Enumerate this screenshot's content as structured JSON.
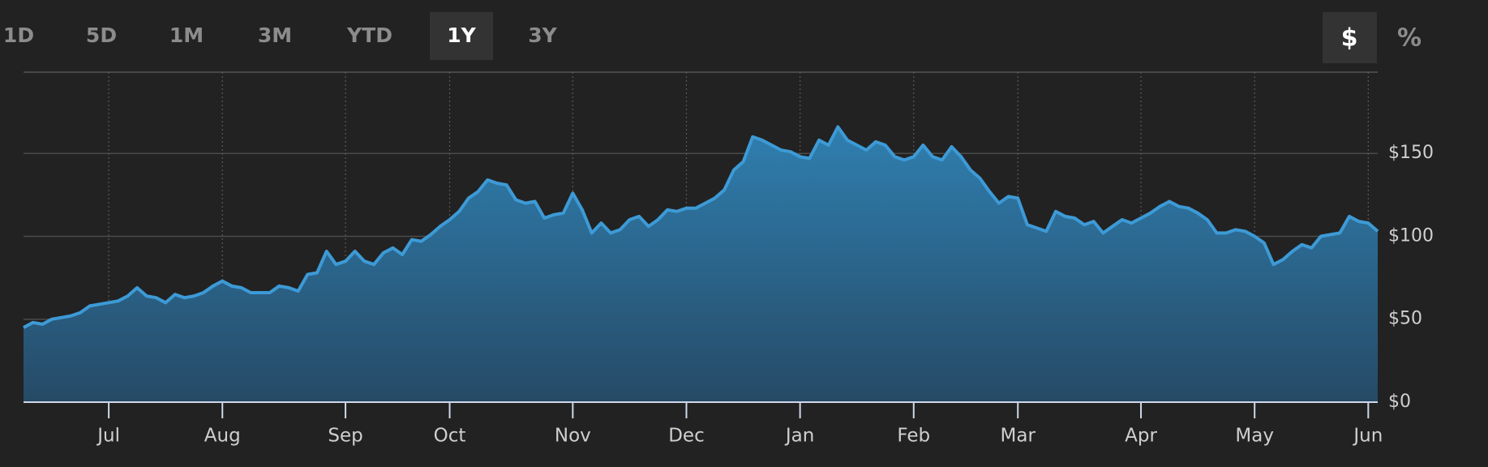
{
  "controls": {
    "ranges": [
      {
        "label": "1D",
        "selected": false
      },
      {
        "label": "5D",
        "selected": false
      },
      {
        "label": "1M",
        "selected": false
      },
      {
        "label": "3M",
        "selected": false
      },
      {
        "label": "YTD",
        "selected": false
      },
      {
        "label": "1Y",
        "selected": true
      },
      {
        "label": "3Y",
        "selected": false
      }
    ],
    "units": [
      {
        "label": "$",
        "selected": true
      },
      {
        "label": "%",
        "selected": false
      }
    ]
  },
  "chart_data": {
    "type": "area",
    "color": "#3d9ad6",
    "values": [
      45,
      48,
      47,
      50,
      51,
      52,
      54,
      58,
      59,
      60,
      61,
      64,
      69,
      64,
      63,
      60,
      65,
      63,
      64,
      66,
      70,
      73,
      70,
      69,
      66,
      66,
      66,
      70,
      69,
      67,
      77,
      78,
      91,
      83,
      85,
      91,
      85,
      83,
      90,
      93,
      89,
      98,
      97,
      101,
      106,
      110,
      115,
      123,
      127,
      134,
      132,
      131,
      122,
      120,
      121,
      111,
      113,
      114,
      126,
      116,
      102,
      108,
      102,
      104,
      110,
      112,
      106,
      110,
      116,
      115,
      117,
      117,
      120,
      123,
      128,
      140,
      145,
      160,
      158,
      155,
      152,
      151,
      148,
      147,
      158,
      155,
      166,
      158,
      155,
      152,
      157,
      155,
      148,
      146,
      148,
      155,
      148,
      146,
      154,
      148,
      140,
      135,
      127,
      120,
      124,
      123,
      107,
      105,
      103,
      115,
      112,
      111,
      107,
      109,
      102,
      106,
      110,
      108,
      111,
      114,
      118,
      121,
      118,
      117,
      114,
      110,
      102,
      102,
      104,
      103,
      100,
      96,
      83,
      86,
      91,
      95,
      93,
      100,
      101,
      102,
      112,
      109,
      108,
      103
    ],
    "xlim": [
      0,
      143
    ],
    "xticks": [
      {
        "value": 9,
        "label": "Jul"
      },
      {
        "value": 21,
        "label": "Aug"
      },
      {
        "value": 34,
        "label": "Sep"
      },
      {
        "value": 45,
        "label": "Oct"
      },
      {
        "value": 58,
        "label": "Nov"
      },
      {
        "value": 70,
        "label": "Dec"
      },
      {
        "value": 82,
        "label": "Jan"
      },
      {
        "value": 94,
        "label": "Feb"
      },
      {
        "value": 105,
        "label": "Mar"
      },
      {
        "value": 118,
        "label": "Apr"
      },
      {
        "value": 130,
        "label": "May"
      },
      {
        "value": 142,
        "label": "Jun"
      }
    ],
    "ylim": [
      0,
      199
    ],
    "yticks": [
      {
        "value": 0,
        "label": "$0"
      },
      {
        "value": 50,
        "label": "$50"
      },
      {
        "value": 100,
        "label": "$100"
      },
      {
        "value": 150,
        "label": "$150"
      }
    ],
    "grid": true
  }
}
